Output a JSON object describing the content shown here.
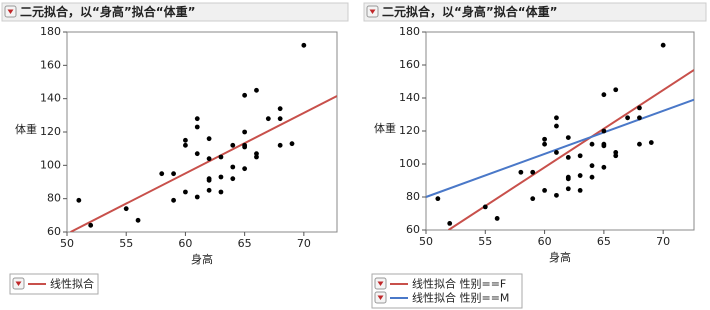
{
  "chart_data": [
    {
      "type": "scatter",
      "title": "二元拟合，以“身高”拟合“体重”",
      "x_label": "身高",
      "y_label": "体重",
      "x": [
        51,
        52,
        55,
        56,
        58,
        59,
        59,
        60,
        60,
        60,
        61,
        61,
        61,
        61,
        62,
        62,
        62,
        62,
        62,
        63,
        63,
        63,
        64,
        64,
        64,
        65,
        65,
        65,
        65,
        65,
        66,
        66,
        66,
        67,
        68,
        68,
        68,
        69,
        70
      ],
      "values": [
        79,
        64,
        74,
        67,
        95,
        95,
        79,
        115,
        112,
        84,
        107,
        128,
        123,
        81,
        116,
        104,
        92,
        91,
        85,
        105,
        93,
        84,
        112,
        99,
        92,
        142,
        120,
        112,
        111,
        98,
        145,
        107,
        105,
        128,
        134,
        128,
        112,
        113,
        172
      ],
      "color": "#000000",
      "xlim": [
        50,
        72.8
      ],
      "ylim": [
        60,
        180
      ],
      "xticks": [
        50,
        55,
        60,
        65,
        70
      ],
      "yticks": [
        60,
        80,
        100,
        120,
        140,
        160,
        180
      ],
      "fits": [
        {
          "name": "线性拟合",
          "color": "#c8504b",
          "x": [
            50.3,
            72.8
          ],
          "values": [
            60,
            141.6
          ]
        }
      ]
    },
    {
      "type": "scatter",
      "title": "二元拟合，以“身高”拟合“体重”",
      "x_label": "身高",
      "y_label": "体重",
      "x": [
        51,
        52,
        55,
        56,
        58,
        59,
        59,
        60,
        60,
        60,
        61,
        61,
        61,
        61,
        62,
        62,
        62,
        62,
        62,
        63,
        63,
        63,
        64,
        64,
        64,
        65,
        65,
        65,
        65,
        65,
        66,
        66,
        66,
        67,
        68,
        68,
        68,
        69,
        70
      ],
      "values": [
        79,
        64,
        74,
        67,
        95,
        95,
        79,
        115,
        112,
        84,
        107,
        128,
        123,
        81,
        116,
        104,
        92,
        91,
        85,
        105,
        93,
        84,
        112,
        99,
        92,
        142,
        120,
        112,
        111,
        98,
        145,
        107,
        105,
        128,
        134,
        128,
        112,
        113,
        172
      ],
      "color": "#000000",
      "xlim": [
        50,
        72.6
      ],
      "ylim": [
        60,
        180
      ],
      "xticks": [
        50,
        55,
        60,
        65,
        70
      ],
      "yticks": [
        60,
        80,
        100,
        120,
        140,
        160,
        180
      ],
      "fits": [
        {
          "name": "线性拟合 性别==F",
          "color": "#c8504b",
          "x": [
            51.9,
            72.6
          ],
          "values": [
            60,
            157
          ]
        },
        {
          "name": "线性拟合 性别==M",
          "color": "#4a78c8",
          "x": [
            50,
            72.6
          ],
          "values": [
            80,
            139
          ]
        }
      ]
    }
  ]
}
